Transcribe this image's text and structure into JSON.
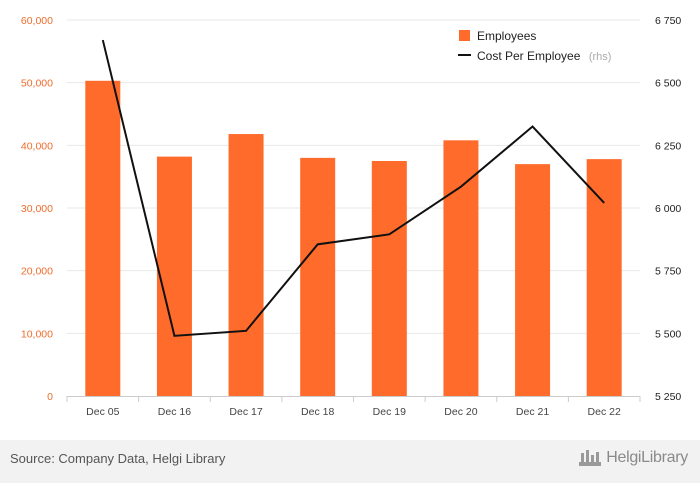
{
  "chart_data": {
    "type": "bar",
    "categories": [
      "Dec 05",
      "Dec 16",
      "Dec 17",
      "Dec 18",
      "Dec 19",
      "Dec 20",
      "Dec 21",
      "Dec 22"
    ],
    "series": [
      {
        "name": "Employees",
        "type": "bar",
        "axis": "left",
        "color": "#ff6b2b",
        "values": [
          50300,
          38200,
          41800,
          38000,
          37500,
          40800,
          37000,
          37800
        ]
      },
      {
        "name": "Cost Per Employee",
        "name_suffix": "(rhs)",
        "type": "line",
        "axis": "right",
        "color": "#111111",
        "values": [
          6670,
          5490,
          5510,
          5855,
          5895,
          6085,
          6325,
          6020
        ]
      }
    ],
    "y_left": {
      "range": [
        0,
        60000
      ],
      "ticks": [
        0,
        10000,
        20000,
        30000,
        40000,
        50000,
        60000
      ],
      "tick_labels": [
        "0",
        "10,000",
        "20,000",
        "30,000",
        "40,000",
        "50,000",
        "60,000"
      ]
    },
    "y_right": {
      "range": [
        5250,
        6750
      ],
      "ticks": [
        5250,
        5500,
        5750,
        6000,
        6250,
        6500,
        6750
      ],
      "tick_labels": [
        "5 250",
        "5 500",
        "5 750",
        "6 000",
        "6 250",
        "6 500",
        "6 750"
      ]
    },
    "grid": true,
    "legend_position": "top-right"
  },
  "footer": {
    "source": "Source: Company Data, Helgi Library",
    "brand": "HelgiLibrary",
    "brand_icon": "helgi-library-logo-icon"
  }
}
